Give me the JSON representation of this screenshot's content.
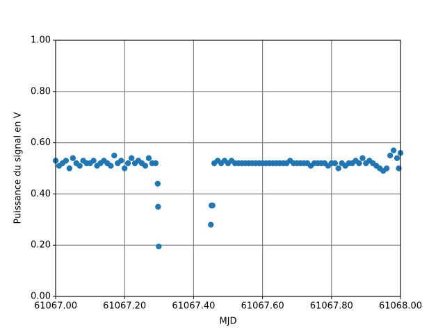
{
  "chart_data": {
    "type": "scatter",
    "x_label": "MJD",
    "y_label": "Puissance du signal en V",
    "series": [
      {
        "color": "#1f77b4",
        "x": [
          61067.0,
          61067.01,
          61067.02,
          61067.03,
          61067.04,
          61067.05,
          61067.06,
          61067.07,
          61067.08,
          61067.09,
          61067.1,
          61067.11,
          61067.12,
          61067.13,
          61067.14,
          61067.15,
          61067.16,
          61067.17,
          61067.18,
          61067.19,
          61067.2,
          61067.21,
          61067.22,
          61067.23,
          61067.24,
          61067.25,
          61067.26,
          61067.27,
          61067.28,
          61067.29,
          61067.296,
          61067.297,
          61067.299,
          61067.45,
          61067.452,
          61067.455,
          61067.46,
          61067.47,
          61067.48,
          61067.49,
          61067.5,
          61067.51,
          61067.52,
          61067.53,
          61067.54,
          61067.55,
          61067.56,
          61067.57,
          61067.58,
          61067.59,
          61067.6,
          61067.61,
          61067.62,
          61067.63,
          61067.64,
          61067.65,
          61067.66,
          61067.67,
          61067.68,
          61067.69,
          61067.7,
          61067.71,
          61067.72,
          61067.73,
          61067.74,
          61067.75,
          61067.76,
          61067.77,
          61067.78,
          61067.79,
          61067.8,
          61067.81,
          61067.82,
          61067.83,
          61067.84,
          61067.85,
          61067.86,
          61067.87,
          61067.88,
          61067.89,
          61067.9,
          61067.91,
          61067.92,
          61067.93,
          61067.94,
          61067.95,
          61067.96,
          61067.97,
          61067.98,
          61067.99,
          61067.995,
          61068.0
        ],
        "values": [
          0.53,
          0.51,
          0.52,
          0.53,
          0.5,
          0.54,
          0.52,
          0.51,
          0.53,
          0.52,
          0.52,
          0.53,
          0.51,
          0.52,
          0.53,
          0.52,
          0.51,
          0.55,
          0.52,
          0.53,
          0.5,
          0.52,
          0.54,
          0.52,
          0.53,
          0.52,
          0.51,
          0.54,
          0.52,
          0.52,
          0.44,
          0.35,
          0.195,
          0.28,
          0.355,
          0.355,
          0.52,
          0.53,
          0.52,
          0.53,
          0.52,
          0.53,
          0.52,
          0.52,
          0.52,
          0.52,
          0.52,
          0.52,
          0.52,
          0.52,
          0.52,
          0.52,
          0.52,
          0.52,
          0.52,
          0.52,
          0.52,
          0.52,
          0.53,
          0.52,
          0.52,
          0.52,
          0.52,
          0.52,
          0.51,
          0.52,
          0.52,
          0.52,
          0.52,
          0.51,
          0.52,
          0.52,
          0.5,
          0.52,
          0.51,
          0.52,
          0.52,
          0.53,
          0.52,
          0.54,
          0.52,
          0.53,
          0.52,
          0.51,
          0.5,
          0.49,
          0.5,
          0.55,
          0.57,
          0.54,
          0.5,
          0.56
        ]
      }
    ],
    "xlim": [
      61067.0,
      61068.0
    ],
    "xticks": [
      {
        "value": 61067.0,
        "label": "61067.00"
      },
      {
        "value": 61067.2,
        "label": "61067.20"
      },
      {
        "value": 61067.4,
        "label": "61067.40"
      },
      {
        "value": 61067.6,
        "label": "61067.60"
      },
      {
        "value": 61067.8,
        "label": "61067.80"
      },
      {
        "value": 61068.0,
        "label": "61068.00"
      }
    ],
    "ylim": [
      0,
      1
    ],
    "yticks": [
      {
        "value": 0,
        "label": "0.00"
      },
      {
        "value": 0.2,
        "label": "0.20"
      },
      {
        "value": 0.4,
        "label": "0.40"
      },
      {
        "value": 0.6,
        "label": "0.60"
      },
      {
        "value": 0.8,
        "label": "0.80"
      },
      {
        "value": 1,
        "label": "1.00"
      }
    ],
    "grid": true
  }
}
